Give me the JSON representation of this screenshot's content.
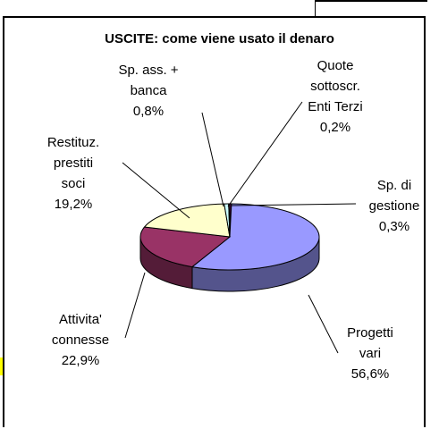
{
  "chart_data": {
    "type": "pie",
    "title": "USCITE: come viene usato il denaro",
    "categories": [
      "Sp. di\ngestione",
      "Progetti\nvari",
      "Attivita'\nconnesse",
      "Restituz.\nprestiti\nsoci",
      "Sp. ass. +\nbanca",
      "Quote\nsottoscr.\nEnti Terzi"
    ],
    "values": [
      0.3,
      56.6,
      22.9,
      19.2,
      0.8,
      0.2
    ],
    "value_labels": [
      "0,3%",
      "56,6%",
      "22,9%",
      "19,2%",
      "0,8%",
      "0,2%"
    ],
    "colors": [
      "#660066",
      "#9999ff",
      "#993366",
      "#ffffcc",
      "#ccffff",
      "#ff8080"
    ]
  }
}
